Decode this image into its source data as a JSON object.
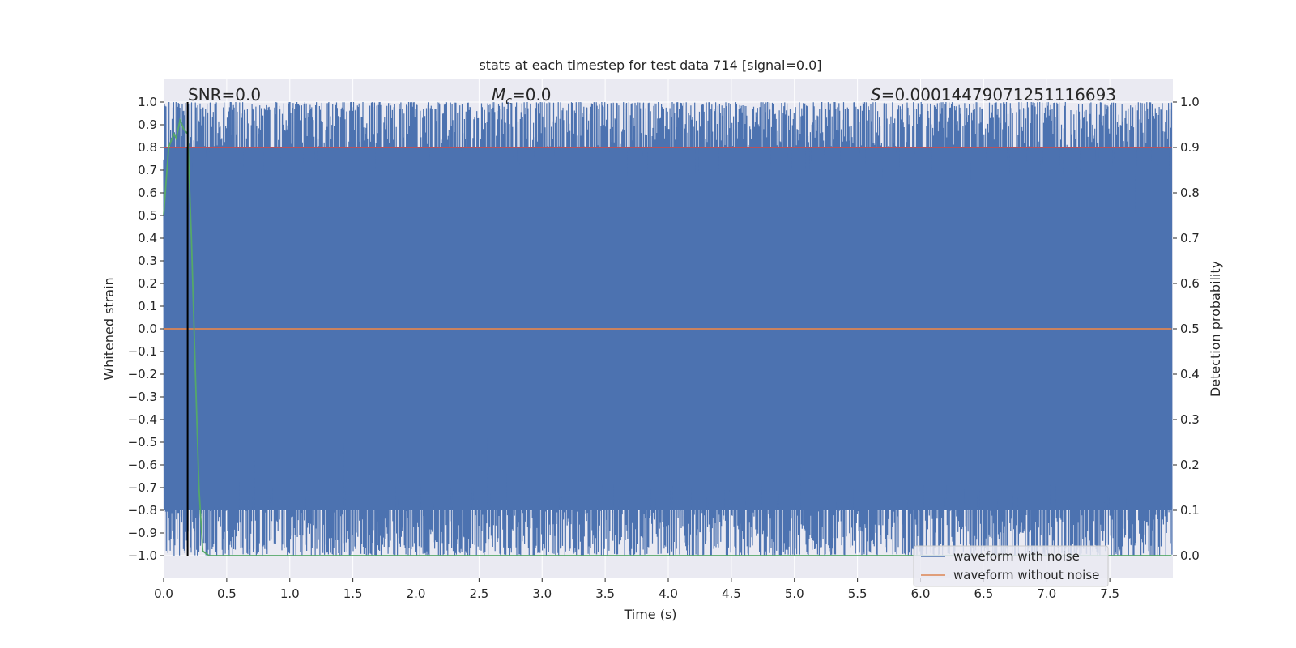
{
  "chart_data": {
    "type": "line",
    "title": "stats at each timestep for test data 714 [signal=0.0]",
    "xlabel": "Time (s)",
    "ylabel_left": "Whitened strain",
    "ylabel_right": "Detection probability",
    "annotations": {
      "snr": "SNR=0.0",
      "mc_symbol": "M",
      "mc_sub": "c",
      "mc_value": "=0.0",
      "s_symbol": "S",
      "s_value": "=0.00014479071251116693"
    },
    "xlim": [
      0.0,
      8.0
    ],
    "ylim_left": [
      -1.1,
      1.1
    ],
    "ylim_right": [
      -0.05,
      1.05
    ],
    "x_ticks": [
      "0.0",
      "0.5",
      "1.0",
      "1.5",
      "2.0",
      "2.5",
      "3.0",
      "3.5",
      "4.0",
      "4.5",
      "5.0",
      "5.5",
      "6.0",
      "6.5",
      "7.0",
      "7.5"
    ],
    "y_left_ticks": [
      "1.0",
      "0.9",
      "0.8",
      "0.7",
      "0.6",
      "0.5",
      "0.4",
      "0.3",
      "0.2",
      "0.1",
      "0.0",
      "−0.1",
      "−0.2",
      "−0.3",
      "−0.4",
      "−0.5",
      "−0.6",
      "−0.7",
      "−0.8",
      "−0.9",
      "−1.0"
    ],
    "y_right_ticks": [
      "1.0",
      "0.9",
      "0.8",
      "0.7",
      "0.6",
      "0.5",
      "0.4",
      "0.3",
      "0.2",
      "0.1",
      "0.0"
    ],
    "grid": true,
    "legend_position": "lower-right",
    "legend": [
      {
        "label": "waveform with noise",
        "color": "#4c72b0"
      },
      {
        "label": "waveform without noise",
        "color": "#dd8452"
      }
    ],
    "series": [
      {
        "name": "waveform with noise",
        "type": "noise",
        "color": "#4c72b0",
        "range": [
          -1.0,
          1.0
        ]
      },
      {
        "name": "waveform without noise",
        "color": "#dd8452",
        "x": [
          0.0,
          7.99
        ],
        "y": [
          0.0,
          0.0
        ]
      },
      {
        "axis": "right",
        "color": "#c44e52",
        "x": [
          0.0,
          7.99
        ],
        "y": [
          0.9,
          0.9
        ]
      },
      {
        "axis": "right",
        "color": "#55a868",
        "x": [
          0.0,
          0.04,
          0.08,
          0.1,
          0.13,
          0.16,
          0.19,
          0.22,
          0.25,
          0.28,
          0.31,
          0.36,
          0.4,
          7.99
        ],
        "y": [
          0.75,
          0.9,
          0.93,
          0.92,
          0.96,
          0.94,
          0.93,
          0.7,
          0.42,
          0.15,
          0.01,
          0.0,
          0.0,
          0.0
        ]
      },
      {
        "name": "marker",
        "color": "#000000",
        "x": [
          0.19,
          0.19
        ],
        "y_axis_left": [
          -1.0,
          1.0
        ]
      }
    ],
    "colors": {
      "plot_bg": "#eaeaf2",
      "grid": "#ffffff"
    }
  }
}
